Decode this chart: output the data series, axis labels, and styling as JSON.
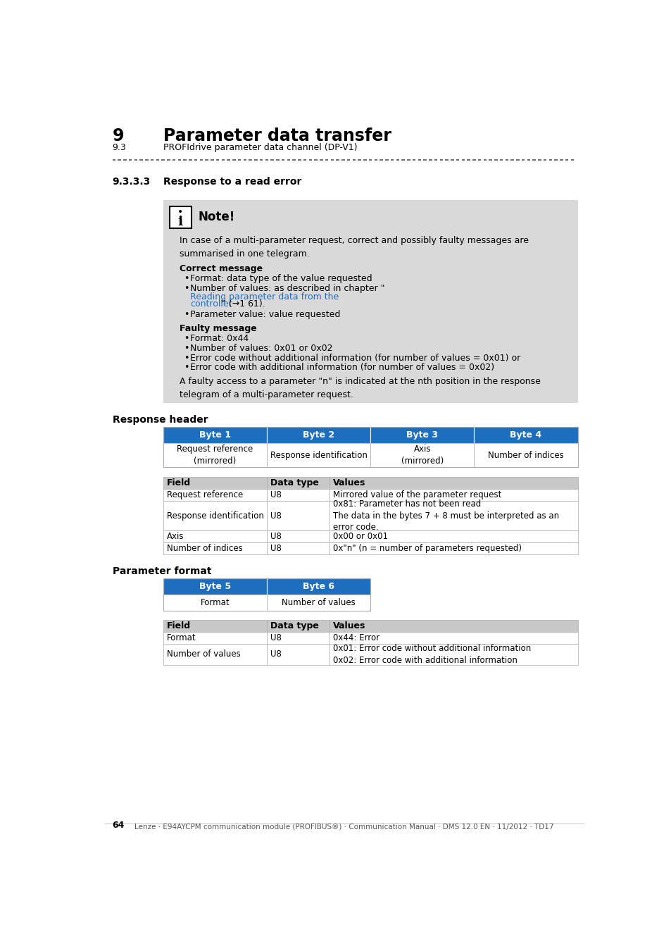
{
  "page_title_num": "9",
  "page_title": "Parameter data transfer",
  "page_subtitle_num": "9.3",
  "page_subtitle": "PROFIdrive parameter data channel (DP-V1)",
  "section_num": "9.3.3.3",
  "section_title": "Response to a read error",
  "note_title": "Note!",
  "note_body": "In case of a multi-parameter request, correct and possibly faulty messages are\nsummarised in one telegram.",
  "correct_msg_title": "Correct message",
  "faulty_msg_title": "Faulty message",
  "faulty_bullets": [
    "Format: 0x44",
    "Number of values: 0x01 or 0x02",
    "Error code without additional information (for number of values = 0x01) or",
    "Error code with additional information (for number of values = 0x02)"
  ],
  "faulty_note": "A faulty access to a parameter \"n\" is indicated at the nth position in the response\ntelegram of a multi-parameter request.",
  "response_header_title": "Response header",
  "rh_cols": [
    "Byte 1",
    "Byte 2",
    "Byte 3",
    "Byte 4"
  ],
  "rh_data": [
    "Request reference\n(mirrored)",
    "Response identification",
    "Axis\n(mirrored)",
    "Number of indices"
  ],
  "rh_field_cols": [
    "Field",
    "Data type",
    "Values"
  ],
  "rh_field_data": [
    [
      "Request reference",
      "U8",
      "Mirrored value of the parameter request"
    ],
    [
      "Response identification",
      "U8",
      "0x81: Parameter has not been read\nThe data in the bytes 7 + 8 must be interpreted as an\nerror code."
    ],
    [
      "Axis",
      "U8",
      "0x00 or 0x01"
    ],
    [
      "Number of indices",
      "U8",
      "0x\"n\" (n = number of parameters requested)"
    ]
  ],
  "param_format_title": "Parameter format",
  "pf_cols": [
    "Byte 5",
    "Byte 6"
  ],
  "pf_data": [
    "Format",
    "Number of values"
  ],
  "pf_field_cols": [
    "Field",
    "Data type",
    "Values"
  ],
  "pf_field_data": [
    [
      "Format",
      "U8",
      "0x44: Error"
    ],
    [
      "Number of values",
      "U8",
      "0x01: Error code without additional information\n0x02: Error code with additional information"
    ]
  ],
  "footer_page": "64",
  "footer_text": "Lenze · E94AYCPM communication module (PROFIBUS®) · Communication Manual · DMS 12.0 EN · 11/2012 · TD17",
  "blue_header": "#1e6ebf",
  "note_bg": "#d9d9d9",
  "table_border": "#aaaaaa",
  "link_color": "#1e6ebf",
  "dashed_line_color": "#555555"
}
